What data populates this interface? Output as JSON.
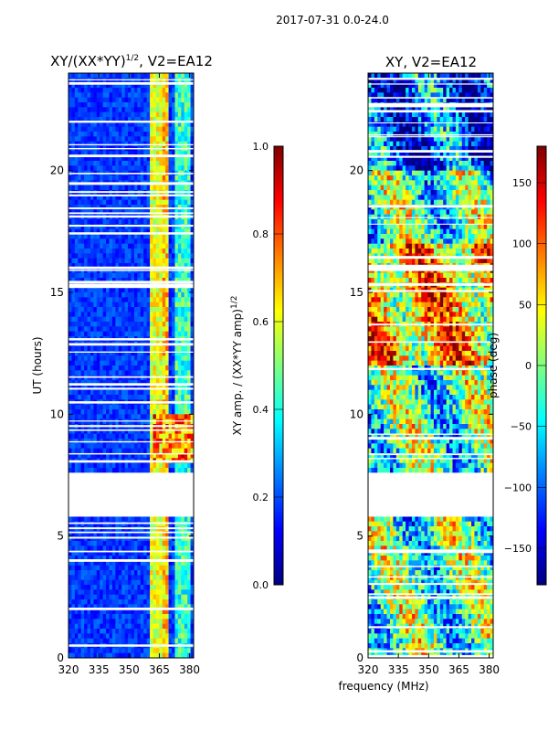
{
  "figure_title": "2017-07-31 0.0-24.0",
  "shared_xlabel": "frequency (MHz)",
  "colors": {
    "jet": [
      "#00007f",
      "#0000ff",
      "#007fff",
      "#00ffff",
      "#7fff7f",
      "#ffff00",
      "#ff7f00",
      "#ff0000",
      "#7f0000"
    ]
  },
  "chart_data": [
    {
      "type": "heatmap",
      "title_main": "XY/(XX*YY)",
      "title_sup": "1/2",
      "title_rest": ", V2=EA12",
      "ylabel": "UT (hours)",
      "xlim": [
        320,
        382
      ],
      "ylim": [
        0,
        24
      ],
      "xticks": [
        "320",
        "335",
        "350",
        "365",
        "380"
      ],
      "xtick_values": [
        320,
        335,
        350,
        365,
        380
      ],
      "yticks": [
        "0",
        "5",
        "10",
        "15",
        "20"
      ],
      "ytick_values": [
        0,
        5,
        10,
        15,
        20
      ],
      "data_gap_hours": [
        5.8,
        7.6
      ],
      "colorbar": {
        "label_main": "XY amp. / (XX*YY amp)",
        "label_sup": "1/2",
        "range": [
          0,
          1
        ],
        "ticks": [
          "0.0",
          "0.2",
          "0.4",
          "0.6",
          "0.8",
          "1.0"
        ],
        "tick_values": [
          0.0,
          0.2,
          0.4,
          0.6,
          0.8,
          1.0
        ]
      }
    },
    {
      "type": "heatmap",
      "title_main": "XY, V2=EA12",
      "ylabel": "",
      "xlim": [
        320,
        382
      ],
      "ylim": [
        0,
        24
      ],
      "xticks": [
        "320",
        "335",
        "350",
        "365",
        "380"
      ],
      "xtick_values": [
        320,
        335,
        350,
        365,
        380
      ],
      "yticks": [
        "0",
        "5",
        "10",
        "15",
        "20"
      ],
      "ytick_values": [
        0,
        5,
        10,
        15,
        20
      ],
      "data_gap_hours": [
        5.8,
        7.6
      ],
      "colorbar": {
        "label_main": "phase (deg)",
        "range": [
          -180,
          180
        ],
        "ticks": [
          "−150",
          "−100",
          "−50",
          "0",
          "50",
          "100",
          "150"
        ],
        "tick_values": [
          -150,
          -100,
          -50,
          0,
          50,
          100,
          150
        ]
      }
    }
  ]
}
